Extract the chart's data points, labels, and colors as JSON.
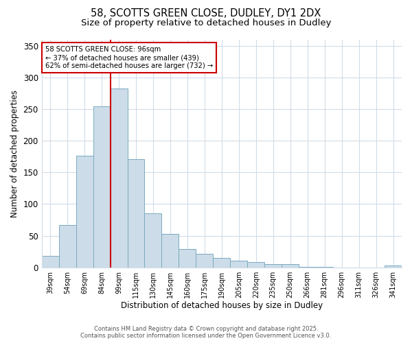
{
  "title1": "58, SCOTTS GREEN CLOSE, DUDLEY, DY1 2DX",
  "title2": "Size of property relative to detached houses in Dudley",
  "xlabel": "Distribution of detached houses by size in Dudley",
  "ylabel": "Number of detached properties",
  "bar_labels": [
    "39sqm",
    "54sqm",
    "69sqm",
    "84sqm",
    "99sqm",
    "115sqm",
    "130sqm",
    "145sqm",
    "160sqm",
    "175sqm",
    "190sqm",
    "205sqm",
    "220sqm",
    "235sqm",
    "250sqm",
    "266sqm",
    "281sqm",
    "296sqm",
    "311sqm",
    "326sqm",
    "341sqm"
  ],
  "bar_values": [
    18,
    67,
    176,
    254,
    283,
    171,
    85,
    53,
    29,
    21,
    15,
    11,
    8,
    5,
    5,
    1,
    1,
    0,
    0,
    0,
    3
  ],
  "bar_color": "#ccdce8",
  "bar_edge_color": "#7aaac0",
  "vline_x_index": 4,
  "vline_color": "#cc0000",
  "annotation_title": "58 SCOTTS GREEN CLOSE: 96sqm",
  "annotation_line1": "← 37% of detached houses are smaller (439)",
  "annotation_line2": "62% of semi-detached houses are larger (732) →",
  "annotation_box_facecolor": "#ffffff",
  "annotation_border_color": "#cc0000",
  "bg_color": "#ffffff",
  "plot_bg_color": "#ffffff",
  "grid_color": "#d0dce8",
  "yticks": [
    0,
    50,
    100,
    150,
    200,
    250,
    300,
    350
  ],
  "ylim": [
    0,
    360
  ],
  "footer1": "Contains HM Land Registry data © Crown copyright and database right 2025.",
  "footer2": "Contains public sector information licensed under the Open Government Licence v3.0."
}
